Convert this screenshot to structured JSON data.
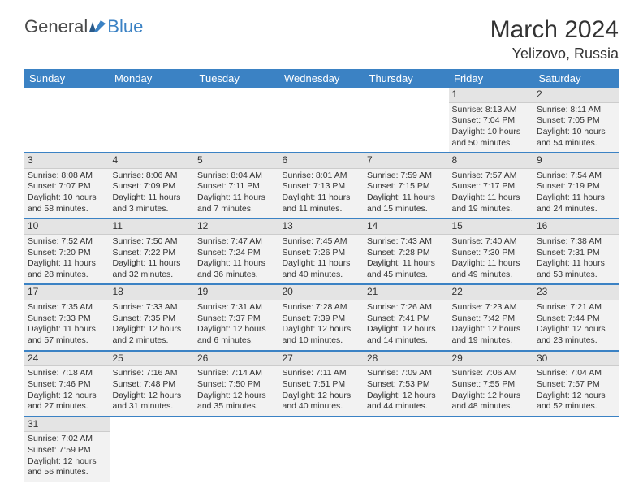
{
  "logo": {
    "part1": "General",
    "part2": "Blue"
  },
  "title": "March 2024",
  "location": "Yelizovo, Russia",
  "colors": {
    "header_bg": "#3b82c4",
    "header_fg": "#ffffff",
    "cell_bg": "#f2f2f2",
    "daynum_bg": "#e4e4e4",
    "row_border": "#3b82c4",
    "logo_accent": "#3b82c4",
    "text": "#333333",
    "page_bg": "#ffffff"
  },
  "weekdays": [
    "Sunday",
    "Monday",
    "Tuesday",
    "Wednesday",
    "Thursday",
    "Friday",
    "Saturday"
  ],
  "weeks": [
    [
      null,
      null,
      null,
      null,
      null,
      {
        "n": "1",
        "sr": "Sunrise: 8:13 AM",
        "ss": "Sunset: 7:04 PM",
        "d1": "Daylight: 10 hours",
        "d2": "and 50 minutes."
      },
      {
        "n": "2",
        "sr": "Sunrise: 8:11 AM",
        "ss": "Sunset: 7:05 PM",
        "d1": "Daylight: 10 hours",
        "d2": "and 54 minutes."
      }
    ],
    [
      {
        "n": "3",
        "sr": "Sunrise: 8:08 AM",
        "ss": "Sunset: 7:07 PM",
        "d1": "Daylight: 10 hours",
        "d2": "and 58 minutes."
      },
      {
        "n": "4",
        "sr": "Sunrise: 8:06 AM",
        "ss": "Sunset: 7:09 PM",
        "d1": "Daylight: 11 hours",
        "d2": "and 3 minutes."
      },
      {
        "n": "5",
        "sr": "Sunrise: 8:04 AM",
        "ss": "Sunset: 7:11 PM",
        "d1": "Daylight: 11 hours",
        "d2": "and 7 minutes."
      },
      {
        "n": "6",
        "sr": "Sunrise: 8:01 AM",
        "ss": "Sunset: 7:13 PM",
        "d1": "Daylight: 11 hours",
        "d2": "and 11 minutes."
      },
      {
        "n": "7",
        "sr": "Sunrise: 7:59 AM",
        "ss": "Sunset: 7:15 PM",
        "d1": "Daylight: 11 hours",
        "d2": "and 15 minutes."
      },
      {
        "n": "8",
        "sr": "Sunrise: 7:57 AM",
        "ss": "Sunset: 7:17 PM",
        "d1": "Daylight: 11 hours",
        "d2": "and 19 minutes."
      },
      {
        "n": "9",
        "sr": "Sunrise: 7:54 AM",
        "ss": "Sunset: 7:19 PM",
        "d1": "Daylight: 11 hours",
        "d2": "and 24 minutes."
      }
    ],
    [
      {
        "n": "10",
        "sr": "Sunrise: 7:52 AM",
        "ss": "Sunset: 7:20 PM",
        "d1": "Daylight: 11 hours",
        "d2": "and 28 minutes."
      },
      {
        "n": "11",
        "sr": "Sunrise: 7:50 AM",
        "ss": "Sunset: 7:22 PM",
        "d1": "Daylight: 11 hours",
        "d2": "and 32 minutes."
      },
      {
        "n": "12",
        "sr": "Sunrise: 7:47 AM",
        "ss": "Sunset: 7:24 PM",
        "d1": "Daylight: 11 hours",
        "d2": "and 36 minutes."
      },
      {
        "n": "13",
        "sr": "Sunrise: 7:45 AM",
        "ss": "Sunset: 7:26 PM",
        "d1": "Daylight: 11 hours",
        "d2": "and 40 minutes."
      },
      {
        "n": "14",
        "sr": "Sunrise: 7:43 AM",
        "ss": "Sunset: 7:28 PM",
        "d1": "Daylight: 11 hours",
        "d2": "and 45 minutes."
      },
      {
        "n": "15",
        "sr": "Sunrise: 7:40 AM",
        "ss": "Sunset: 7:30 PM",
        "d1": "Daylight: 11 hours",
        "d2": "and 49 minutes."
      },
      {
        "n": "16",
        "sr": "Sunrise: 7:38 AM",
        "ss": "Sunset: 7:31 PM",
        "d1": "Daylight: 11 hours",
        "d2": "and 53 minutes."
      }
    ],
    [
      {
        "n": "17",
        "sr": "Sunrise: 7:35 AM",
        "ss": "Sunset: 7:33 PM",
        "d1": "Daylight: 11 hours",
        "d2": "and 57 minutes."
      },
      {
        "n": "18",
        "sr": "Sunrise: 7:33 AM",
        "ss": "Sunset: 7:35 PM",
        "d1": "Daylight: 12 hours",
        "d2": "and 2 minutes."
      },
      {
        "n": "19",
        "sr": "Sunrise: 7:31 AM",
        "ss": "Sunset: 7:37 PM",
        "d1": "Daylight: 12 hours",
        "d2": "and 6 minutes."
      },
      {
        "n": "20",
        "sr": "Sunrise: 7:28 AM",
        "ss": "Sunset: 7:39 PM",
        "d1": "Daylight: 12 hours",
        "d2": "and 10 minutes."
      },
      {
        "n": "21",
        "sr": "Sunrise: 7:26 AM",
        "ss": "Sunset: 7:41 PM",
        "d1": "Daylight: 12 hours",
        "d2": "and 14 minutes."
      },
      {
        "n": "22",
        "sr": "Sunrise: 7:23 AM",
        "ss": "Sunset: 7:42 PM",
        "d1": "Daylight: 12 hours",
        "d2": "and 19 minutes."
      },
      {
        "n": "23",
        "sr": "Sunrise: 7:21 AM",
        "ss": "Sunset: 7:44 PM",
        "d1": "Daylight: 12 hours",
        "d2": "and 23 minutes."
      }
    ],
    [
      {
        "n": "24",
        "sr": "Sunrise: 7:18 AM",
        "ss": "Sunset: 7:46 PM",
        "d1": "Daylight: 12 hours",
        "d2": "and 27 minutes."
      },
      {
        "n": "25",
        "sr": "Sunrise: 7:16 AM",
        "ss": "Sunset: 7:48 PM",
        "d1": "Daylight: 12 hours",
        "d2": "and 31 minutes."
      },
      {
        "n": "26",
        "sr": "Sunrise: 7:14 AM",
        "ss": "Sunset: 7:50 PM",
        "d1": "Daylight: 12 hours",
        "d2": "and 35 minutes."
      },
      {
        "n": "27",
        "sr": "Sunrise: 7:11 AM",
        "ss": "Sunset: 7:51 PM",
        "d1": "Daylight: 12 hours",
        "d2": "and 40 minutes."
      },
      {
        "n": "28",
        "sr": "Sunrise: 7:09 AM",
        "ss": "Sunset: 7:53 PM",
        "d1": "Daylight: 12 hours",
        "d2": "and 44 minutes."
      },
      {
        "n": "29",
        "sr": "Sunrise: 7:06 AM",
        "ss": "Sunset: 7:55 PM",
        "d1": "Daylight: 12 hours",
        "d2": "and 48 minutes."
      },
      {
        "n": "30",
        "sr": "Sunrise: 7:04 AM",
        "ss": "Sunset: 7:57 PM",
        "d1": "Daylight: 12 hours",
        "d2": "and 52 minutes."
      }
    ],
    [
      {
        "n": "31",
        "sr": "Sunrise: 7:02 AM",
        "ss": "Sunset: 7:59 PM",
        "d1": "Daylight: 12 hours",
        "d2": "and 56 minutes."
      },
      null,
      null,
      null,
      null,
      null,
      null
    ]
  ]
}
